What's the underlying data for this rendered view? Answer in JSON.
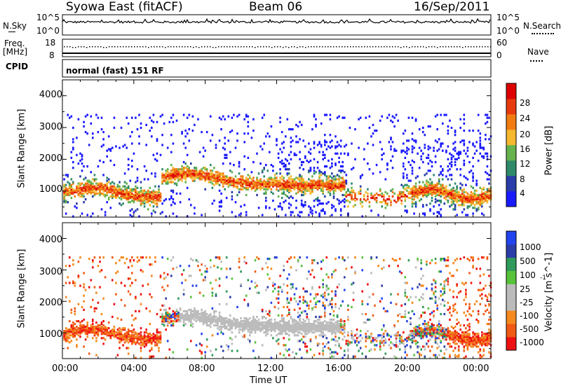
{
  "header": {
    "station": "Syowa East (fitACF)",
    "beam": "Beam 06",
    "date": "16/Sep/2011"
  },
  "nsky_panel": {
    "left_label": "N.Sky",
    "right_label": "N.Search",
    "left_ticks": [
      "10^5",
      "10^0"
    ],
    "right_ticks": [
      "10^5",
      "10^0"
    ]
  },
  "freq_panel": {
    "left_label_line1": "Freq.",
    "left_label_line2": "[MHz]",
    "right_label": "Nave",
    "left_ticks": [
      "18",
      "8"
    ],
    "right_ticks": [
      "60",
      "0"
    ]
  },
  "cpid_panel": {
    "label": "CPID",
    "text": "normal (fast) 151 RF"
  },
  "colors": {
    "power": [
      "#1a1aff",
      "#2a3da8",
      "#2f8a6a",
      "#66b24d",
      "#f5b82e",
      "#f07c12",
      "#e83a0f",
      "#dd0000"
    ],
    "velocity": [
      "#ee1111",
      "#f05a14",
      "#f58a1f",
      "#bbbbbb",
      "#bbbbbb",
      "#58c23a",
      "#2f9a5a",
      "#2a3da8",
      "#2244ee"
    ]
  },
  "chart_data": [
    {
      "type": "heatmap",
      "title": "",
      "xlabel": "",
      "ylabel": "Slant Range [km]",
      "x_ticks": [
        "00:00",
        "04:00",
        "08:00",
        "12:00",
        "16:00",
        "20:00",
        "00:00"
      ],
      "y_ticks": [
        "1000",
        "2000",
        "3000",
        "4000"
      ],
      "ylim": [
        180,
        4500
      ],
      "xlim_hours": [
        0,
        24
      ],
      "colorbar": {
        "label": "Power [dB]",
        "ticks": [
          "4",
          "8",
          "12",
          "16",
          "20",
          "24",
          "28"
        ],
        "range": [
          0,
          30
        ]
      }
    },
    {
      "type": "heatmap",
      "title": "",
      "xlabel": "Time UT",
      "ylabel": "Slant Range [km]",
      "x_ticks": [
        "00:00",
        "04:00",
        "08:00",
        "12:00",
        "16:00",
        "20:00",
        "00:00"
      ],
      "y_ticks": [
        "1000",
        "2000",
        "3000",
        "4000"
      ],
      "ylim": [
        180,
        4500
      ],
      "xlim_hours": [
        0,
        24
      ],
      "colorbar": {
        "label": "Velocity [m s^-1]",
        "ticks": [
          "1000",
          "500",
          "100",
          "25",
          "-25",
          "-100",
          "-500",
          "-1000"
        ]
      }
    }
  ]
}
